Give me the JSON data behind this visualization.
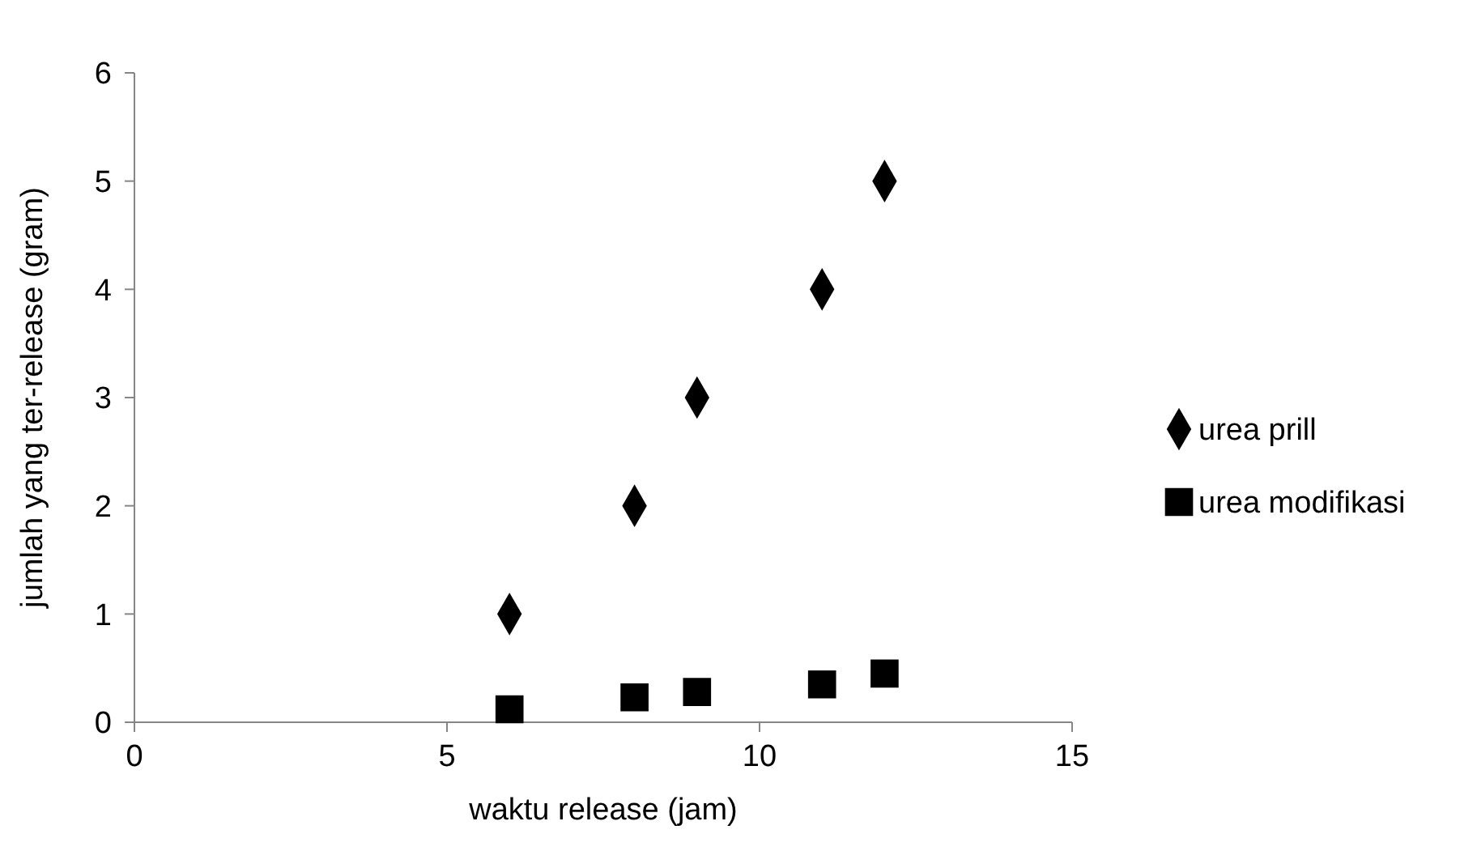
{
  "chart_data": {
    "type": "scatter",
    "xlabel": "waktu release (jam)",
    "ylabel": "jumlah yang ter-release (gram)",
    "x": [
      6,
      8,
      9,
      11,
      12
    ],
    "series": [
      {
        "name": "urea prill",
        "color": "#000000",
        "marker": "diamond",
        "values": [
          1,
          2,
          3,
          4,
          5
        ]
      },
      {
        "name": "urea modifikasi",
        "color": "#000000",
        "marker": "square",
        "values": [
          0.12,
          0.23,
          0.28,
          0.35,
          0.45
        ]
      }
    ],
    "xlim": [
      0,
      15
    ],
    "xticks": [
      0,
      5,
      10,
      15
    ],
    "ylim": [
      0,
      6
    ],
    "yticks": [
      0,
      1,
      2,
      3,
      4,
      5,
      6
    ],
    "grid": false,
    "legend": "right"
  }
}
